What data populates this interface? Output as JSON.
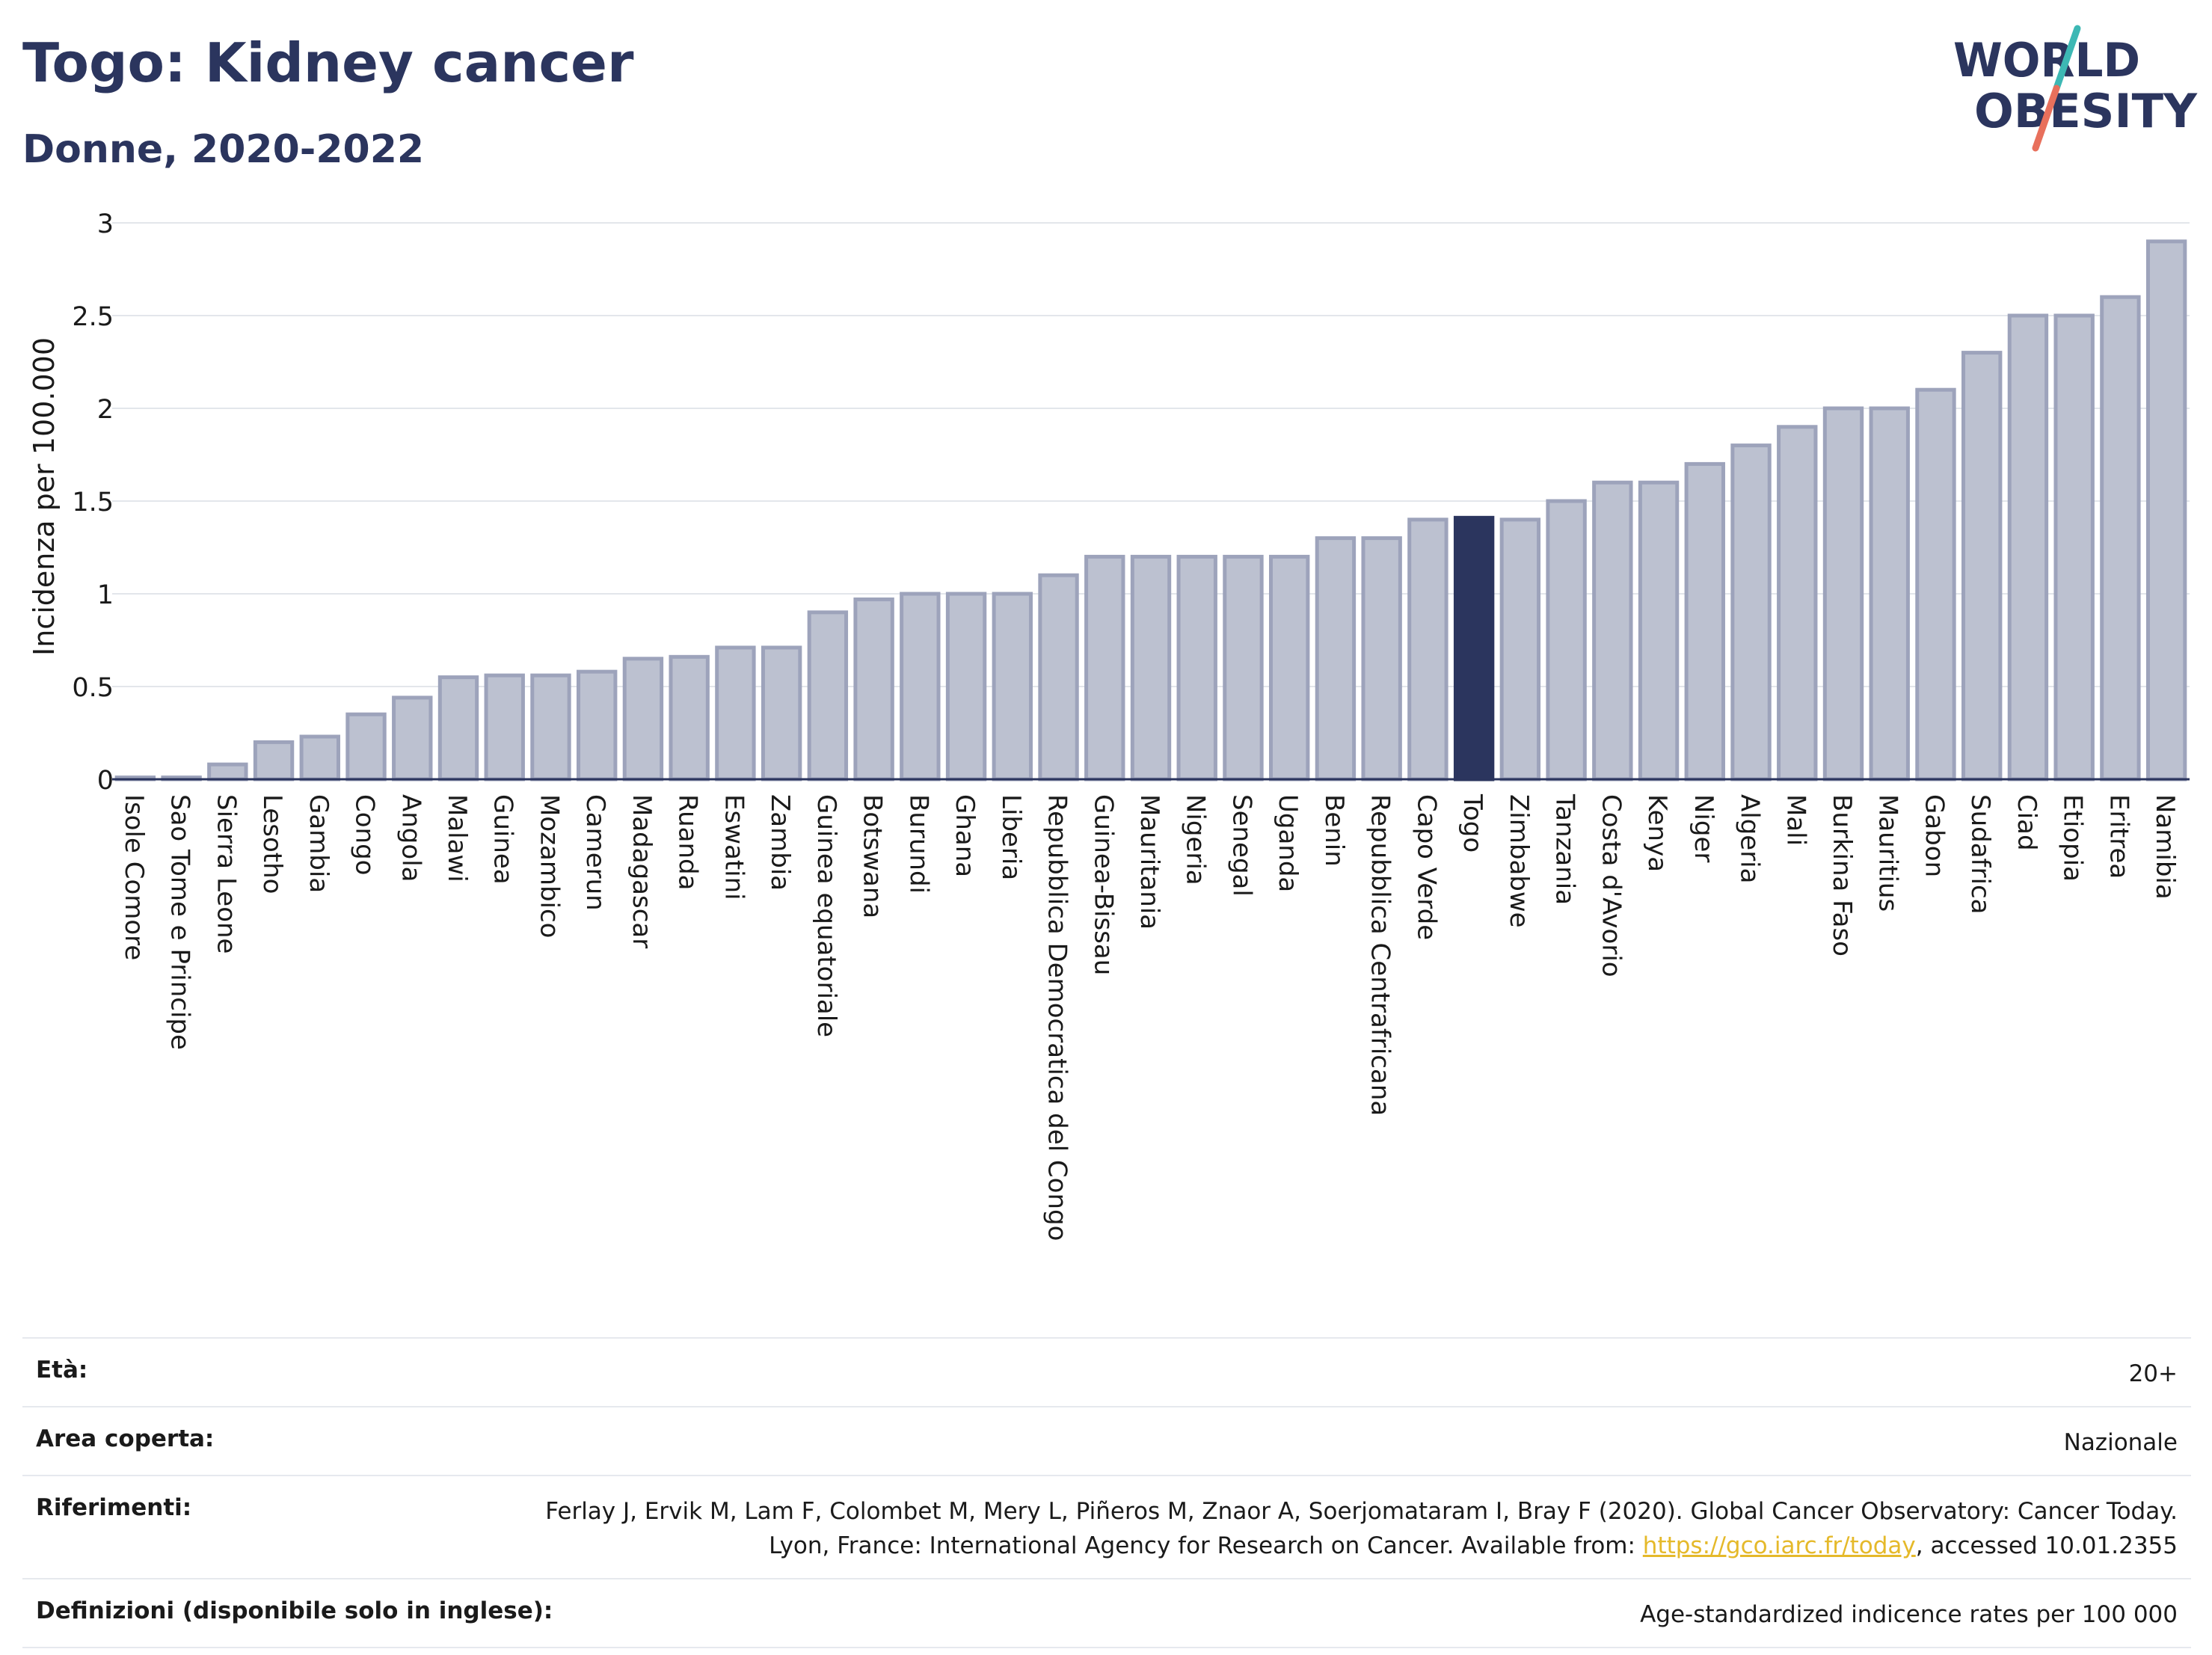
{
  "header": {
    "title": "Togo: Kidney cancer",
    "subtitle": "Donne, 2020-2022",
    "logo_line1": "WORLD",
    "logo_line2": "OBESITY"
  },
  "colors": {
    "bar": "#bcc1d0",
    "bar_border": "#9da3bb",
    "highlight": "#2b355e",
    "title": "#2b355e",
    "link": "#e5b92a",
    "logo_slash_teal": "#3db8b4",
    "logo_slash_red": "#e8705c"
  },
  "chart_data": {
    "type": "bar",
    "ylabel": "Incidenza per 100.000",
    "ylim": [
      0,
      3
    ],
    "yticks": [
      0,
      0.5,
      1,
      1.5,
      2,
      2.5,
      3
    ],
    "ytick_labels": [
      "0",
      "0.5",
      "1",
      "1.5",
      "2",
      "2.5",
      "3"
    ],
    "grid": true,
    "highlight": "Togo",
    "categories": [
      "Isole Comore",
      "Sao Tome e Principe",
      "Sierra Leone",
      "Lesotho",
      "Gambia",
      "Congo",
      "Angola",
      "Malawi",
      "Guinea",
      "Mozambico",
      "Camerun",
      "Madagascar",
      "Ruanda",
      "Eswatini",
      "Zambia",
      "Guinea equatoriale",
      "Botswana",
      "Burundi",
      "Ghana",
      "Liberia",
      "Repubblica Democratica del Congo",
      "Guinea-Bissau",
      "Mauritania",
      "Nigeria",
      "Senegal",
      "Uganda",
      "Benin",
      "Repubblica Centrafricana",
      "Capo Verde",
      "Togo",
      "Zimbabwe",
      "Tanzania",
      "Costa d'Avorio",
      "Kenya",
      "Niger",
      "Algeria",
      "Mali",
      "Burkina Faso",
      "Mauritius",
      "Gabon",
      "Sudafrica",
      "Ciad",
      "Etiopia",
      "Eritrea",
      "Namibia"
    ],
    "values": [
      0.01,
      0.01,
      0.08,
      0.2,
      0.23,
      0.35,
      0.44,
      0.55,
      0.56,
      0.56,
      0.58,
      0.65,
      0.66,
      0.71,
      0.71,
      0.9,
      0.97,
      1.0,
      1.0,
      1.0,
      1.1,
      1.2,
      1.2,
      1.2,
      1.2,
      1.2,
      1.3,
      1.3,
      1.4,
      1.41,
      1.4,
      1.5,
      1.6,
      1.6,
      1.7,
      1.8,
      1.9,
      2.0,
      2.0,
      2.1,
      2.3,
      2.5,
      2.5,
      2.6,
      2.9
    ]
  },
  "footer": {
    "rows": [
      {
        "label": "Età:",
        "value": "20+"
      },
      {
        "label": "Area coperta:",
        "value": "Nazionale"
      },
      {
        "label": "Riferimenti:",
        "value_before": "Ferlay J, Ervik M, Lam F, Colombet M, Mery L, Piñeros M, Znaor A, Soerjomataram I, Bray F (2020). Global Cancer Observatory: Cancer Today. Lyon, France: International Agency for Research on Cancer. Available from: ",
        "link": "https://gco.iarc.fr/today",
        "value_after": ", accessed 10.01.2355"
      },
      {
        "label": "Definizioni (disponibile solo in inglese):",
        "value": "Age-standardized indicence rates per 100 000"
      }
    ]
  }
}
